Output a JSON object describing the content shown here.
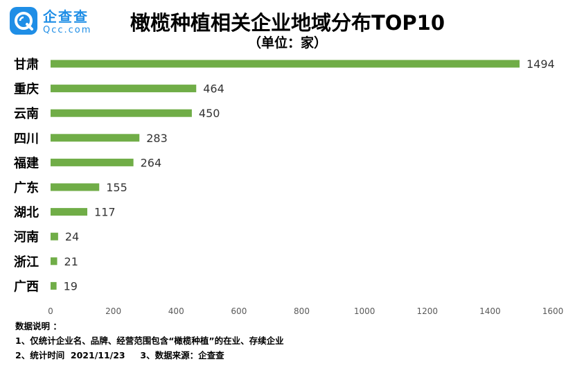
{
  "logo": {
    "name": "企查查",
    "domain": "Qcc.com",
    "mark": "magnifier-q"
  },
  "chart_data": {
    "type": "bar",
    "orientation": "horizontal",
    "title": "橄榄种植相关企业地域分布TOP10",
    "subtitle": "（单位：家）",
    "categories": [
      "甘肃",
      "重庆",
      "云南",
      "四川",
      "福建",
      "广东",
      "湖北",
      "河南",
      "浙江",
      "广西"
    ],
    "values": [
      1494,
      464,
      450,
      283,
      264,
      155,
      117,
      24,
      21,
      19
    ],
    "xlim": [
      0,
      1600
    ],
    "xticks": [
      0,
      200,
      400,
      600,
      800,
      1000,
      1200,
      1400,
      1600
    ],
    "bar_color": "#70ad47",
    "grid": false,
    "legend": "none"
  },
  "notes": {
    "heading": "数据说明 ：",
    "lines": [
      "1、仅统计企业名、品牌、经营范围包含“橄榄种植”的在业、存续企业",
      "2、统计时间  2021/11/23     3、数据来源：企查查"
    ]
  }
}
